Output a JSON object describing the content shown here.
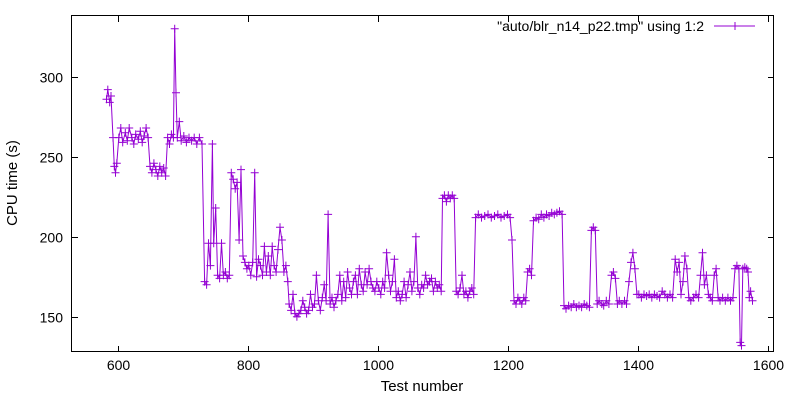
{
  "chart_data": {
    "type": "line",
    "title": "",
    "xlabel": "Test number",
    "ylabel": "CPU time (s)",
    "xlim": [
      530,
      1610
    ],
    "ylim": [
      128,
      338
    ],
    "xticks": [
      600,
      800,
      1000,
      1200,
      1400,
      1600
    ],
    "yticks": [
      150,
      200,
      250,
      300
    ],
    "grid": false,
    "legend_position": "top-right",
    "marker": "plus",
    "colors": {
      "series": "#9400d3",
      "axes": "#000000",
      "background": "#ffffff"
    },
    "series": [
      {
        "name": "\"auto/blr_n14_p22.tmp\" using 1:2",
        "points": [
          [
            583,
            286
          ],
          [
            585,
            292
          ],
          [
            588,
            284
          ],
          [
            590,
            288
          ],
          [
            593,
            262
          ],
          [
            595,
            244
          ],
          [
            597,
            240
          ],
          [
            599,
            246
          ],
          [
            602,
            262
          ],
          [
            605,
            268
          ],
          [
            608,
            259
          ],
          [
            612,
            265
          ],
          [
            615,
            260
          ],
          [
            618,
            268
          ],
          [
            622,
            262
          ],
          [
            625,
            258
          ],
          [
            628,
            264
          ],
          [
            632,
            261
          ],
          [
            635,
            266
          ],
          [
            638,
            259
          ],
          [
            641,
            263
          ],
          [
            644,
            268
          ],
          [
            647,
            262
          ],
          [
            650,
            244
          ],
          [
            653,
            240
          ],
          [
            656,
            246
          ],
          [
            659,
            242
          ],
          [
            662,
            238
          ],
          [
            665,
            244
          ],
          [
            668,
            240
          ],
          [
            671,
            243
          ],
          [
            674,
            238
          ],
          [
            677,
            262
          ],
          [
            680,
            258
          ],
          [
            683,
            264
          ],
          [
            686,
            262
          ],
          [
            688,
            330
          ],
          [
            690,
            290
          ],
          [
            692,
            262
          ],
          [
            695,
            272
          ],
          [
            698,
            260
          ],
          [
            702,
            263
          ],
          [
            706,
            259
          ],
          [
            710,
            262
          ],
          [
            714,
            260
          ],
          [
            718,
            262
          ],
          [
            722,
            258
          ],
          [
            726,
            262
          ],
          [
            730,
            258
          ],
          [
            734,
            172
          ],
          [
            737,
            170
          ],
          [
            740,
            196
          ],
          [
            743,
            182
          ],
          [
            746,
            258
          ],
          [
            748,
            196
          ],
          [
            751,
            218
          ],
          [
            754,
            176
          ],
          [
            757,
            174
          ],
          [
            760,
            196
          ],
          [
            763,
            176
          ],
          [
            766,
            178
          ],
          [
            769,
            174
          ],
          [
            772,
            176
          ],
          [
            775,
            240
          ],
          [
            778,
            236
          ],
          [
            781,
            230
          ],
          [
            784,
            234
          ],
          [
            787,
            198
          ],
          [
            790,
            242
          ],
          [
            793,
            188
          ],
          [
            796,
            184
          ],
          [
            799,
            180
          ],
          [
            802,
            182
          ],
          [
            805,
            176
          ],
          [
            808,
            184
          ],
          [
            811,
            240
          ],
          [
            814,
            175
          ],
          [
            817,
            186
          ],
          [
            820,
            182
          ],
          [
            823,
            176
          ],
          [
            826,
            194
          ],
          [
            829,
            178
          ],
          [
            832,
            188
          ],
          [
            835,
            176
          ],
          [
            838,
            194
          ],
          [
            841,
            182
          ],
          [
            844,
            178
          ],
          [
            847,
            192
          ],
          [
            850,
            206
          ],
          [
            853,
            198
          ],
          [
            856,
            178
          ],
          [
            859,
            182
          ],
          [
            862,
            172
          ],
          [
            864,
            158
          ],
          [
            867,
            154
          ],
          [
            870,
            164
          ],
          [
            873,
            152
          ],
          [
            876,
            150
          ],
          [
            879,
            152
          ],
          [
            882,
            154
          ],
          [
            885,
            160
          ],
          [
            888,
            156
          ],
          [
            891,
            152
          ],
          [
            894,
            154
          ],
          [
            897,
            164
          ],
          [
            900,
            156
          ],
          [
            903,
            158
          ],
          [
            906,
            176
          ],
          [
            909,
            160
          ],
          [
            912,
            154
          ],
          [
            915,
            162
          ],
          [
            918,
            170
          ],
          [
            921,
            160
          ],
          [
            924,
            214
          ],
          [
            927,
            158
          ],
          [
            930,
            162
          ],
          [
            933,
            156
          ],
          [
            936,
            160
          ],
          [
            939,
            164
          ],
          [
            942,
            176
          ],
          [
            945,
            160
          ],
          [
            948,
            172
          ],
          [
            951,
            162
          ],
          [
            954,
            178
          ],
          [
            957,
            168
          ],
          [
            960,
            164
          ],
          [
            963,
            172
          ],
          [
            966,
            176
          ],
          [
            969,
            164
          ],
          [
            972,
            180
          ],
          [
            975,
            170
          ],
          [
            978,
            166
          ],
          [
            981,
            178
          ],
          [
            984,
            170
          ],
          [
            987,
            180
          ],
          [
            990,
            172
          ],
          [
            993,
            168
          ],
          [
            996,
            166
          ],
          [
            999,
            172
          ],
          [
            1002,
            168
          ],
          [
            1005,
            164
          ],
          [
            1008,
            172
          ],
          [
            1011,
            168
          ],
          [
            1014,
            190
          ],
          [
            1017,
            176
          ],
          [
            1020,
            166
          ],
          [
            1023,
            172
          ],
          [
            1026,
            186
          ],
          [
            1029,
            162
          ],
          [
            1032,
            166
          ],
          [
            1035,
            160
          ],
          [
            1038,
            164
          ],
          [
            1041,
            172
          ],
          [
            1044,
            162
          ],
          [
            1047,
            170
          ],
          [
            1050,
            178
          ],
          [
            1053,
            166
          ],
          [
            1056,
            172
          ],
          [
            1059,
            200
          ],
          [
            1062,
            168
          ],
          [
            1065,
            164
          ],
          [
            1068,
            170
          ],
          [
            1071,
            168
          ],
          [
            1074,
            176
          ],
          [
            1077,
            170
          ],
          [
            1080,
            172
          ],
          [
            1083,
            174
          ],
          [
            1086,
            166
          ],
          [
            1089,
            172
          ],
          [
            1092,
            168
          ],
          [
            1095,
            170
          ],
          [
            1098,
            166
          ],
          [
            1100,
            224
          ],
          [
            1103,
            226
          ],
          [
            1106,
            222
          ],
          [
            1109,
            226
          ],
          [
            1112,
            224
          ],
          [
            1115,
            226
          ],
          [
            1118,
            224
          ],
          [
            1121,
            166
          ],
          [
            1124,
            164
          ],
          [
            1127,
            168
          ],
          [
            1130,
            176
          ],
          [
            1133,
            164
          ],
          [
            1136,
            166
          ],
          [
            1139,
            162
          ],
          [
            1142,
            166
          ],
          [
            1145,
            168
          ],
          [
            1148,
            164
          ],
          [
            1151,
            212
          ],
          [
            1155,
            214
          ],
          [
            1160,
            212
          ],
          [
            1165,
            213
          ],
          [
            1170,
            214
          ],
          [
            1175,
            212
          ],
          [
            1180,
            213
          ],
          [
            1185,
            214
          ],
          [
            1190,
            212
          ],
          [
            1195,
            213
          ],
          [
            1200,
            214
          ],
          [
            1204,
            212
          ],
          [
            1207,
            198
          ],
          [
            1210,
            160
          ],
          [
            1213,
            158
          ],
          [
            1216,
            162
          ],
          [
            1219,
            160
          ],
          [
            1222,
            158
          ],
          [
            1225,
            162
          ],
          [
            1228,
            160
          ],
          [
            1231,
            178
          ],
          [
            1234,
            180
          ],
          [
            1237,
            176
          ],
          [
            1240,
            210
          ],
          [
            1244,
            212
          ],
          [
            1248,
            211
          ],
          [
            1252,
            214
          ],
          [
            1256,
            212
          ],
          [
            1260,
            214
          ],
          [
            1264,
            213
          ],
          [
            1268,
            215
          ],
          [
            1272,
            214
          ],
          [
            1276,
            215
          ],
          [
            1280,
            216
          ],
          [
            1284,
            214
          ],
          [
            1287,
            157
          ],
          [
            1290,
            155
          ],
          [
            1294,
            157
          ],
          [
            1298,
            156
          ],
          [
            1302,
            158
          ],
          [
            1306,
            156
          ],
          [
            1310,
            157
          ],
          [
            1314,
            156
          ],
          [
            1318,
            158
          ],
          [
            1322,
            157
          ],
          [
            1326,
            156
          ],
          [
            1329,
            204
          ],
          [
            1332,
            206
          ],
          [
            1335,
            204
          ],
          [
            1338,
            158
          ],
          [
            1341,
            160
          ],
          [
            1345,
            158
          ],
          [
            1348,
            157
          ],
          [
            1352,
            160
          ],
          [
            1356,
            158
          ],
          [
            1360,
            176
          ],
          [
            1363,
            178
          ],
          [
            1366,
            174
          ],
          [
            1369,
            158
          ],
          [
            1372,
            160
          ],
          [
            1376,
            158
          ],
          [
            1380,
            160
          ],
          [
            1383,
            158
          ],
          [
            1387,
            172
          ],
          [
            1390,
            184
          ],
          [
            1393,
            190
          ],
          [
            1396,
            180
          ],
          [
            1399,
            164
          ],
          [
            1402,
            164
          ],
          [
            1406,
            162
          ],
          [
            1410,
            164
          ],
          [
            1414,
            163
          ],
          [
            1418,
            164
          ],
          [
            1422,
            162
          ],
          [
            1426,
            164
          ],
          [
            1430,
            163
          ],
          [
            1434,
            162
          ],
          [
            1438,
            166
          ],
          [
            1442,
            164
          ],
          [
            1446,
            162
          ],
          [
            1450,
            164
          ],
          [
            1454,
            162
          ],
          [
            1458,
            186
          ],
          [
            1461,
            178
          ],
          [
            1464,
            184
          ],
          [
            1467,
            164
          ],
          [
            1470,
            172
          ],
          [
            1473,
            188
          ],
          [
            1476,
            180
          ],
          [
            1479,
            162
          ],
          [
            1482,
            160
          ],
          [
            1486,
            162
          ],
          [
            1490,
            164
          ],
          [
            1494,
            162
          ],
          [
            1497,
            176
          ],
          [
            1500,
            190
          ],
          [
            1503,
            170
          ],
          [
            1506,
            176
          ],
          [
            1509,
            164
          ],
          [
            1512,
            162
          ],
          [
            1515,
            160
          ],
          [
            1518,
            176
          ],
          [
            1521,
            180
          ],
          [
            1524,
            162
          ],
          [
            1527,
            160
          ],
          [
            1531,
            162
          ],
          [
            1535,
            160
          ],
          [
            1539,
            162
          ],
          [
            1543,
            160
          ],
          [
            1547,
            162
          ],
          [
            1550,
            180
          ],
          [
            1553,
            182
          ],
          [
            1556,
            180
          ],
          [
            1558,
            134
          ],
          [
            1560,
            132
          ],
          [
            1562,
            180
          ],
          [
            1565,
            181
          ],
          [
            1568,
            180
          ],
          [
            1570,
            178
          ],
          [
            1572,
            162
          ],
          [
            1574,
            166
          ],
          [
            1577,
            160
          ]
        ]
      }
    ]
  }
}
